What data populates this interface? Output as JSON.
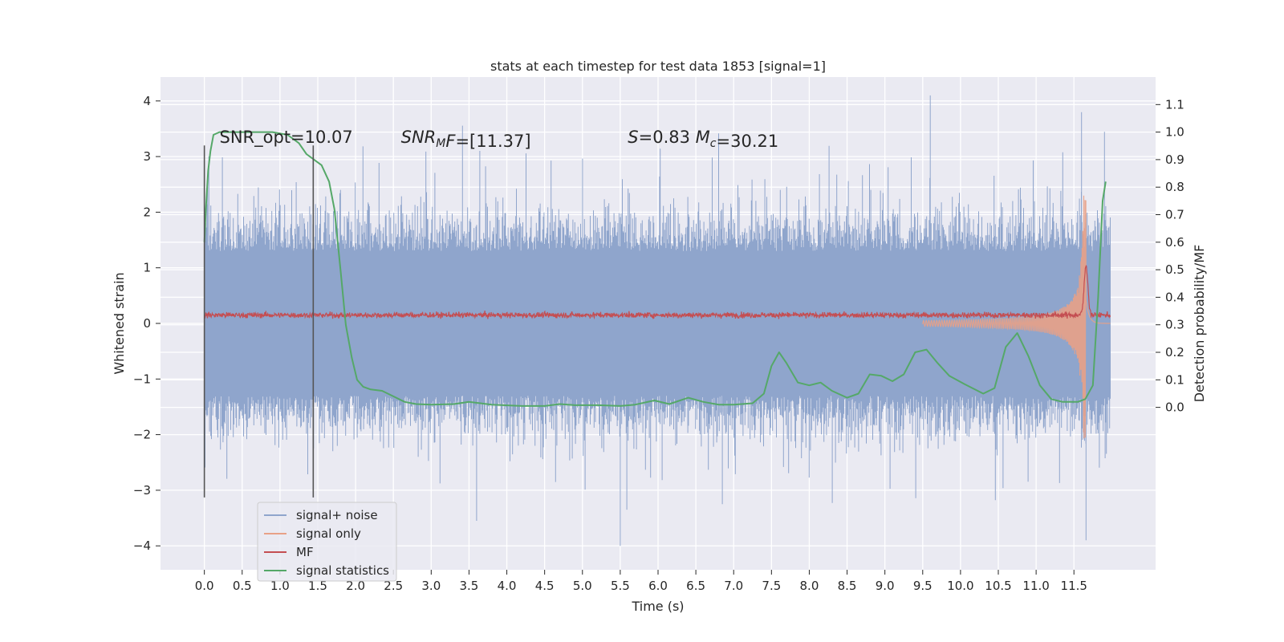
{
  "chart_data": {
    "type": "line",
    "title": "stats at each timestep for test data 1853 [signal=1]",
    "xlabel": "Time (s)",
    "ylabel": "Whitened strain",
    "ylabel_right": "Detection probability/MF",
    "xlim": [
      -0.58,
      12.58
    ],
    "ylim": [
      -4.43,
      4.43
    ],
    "ylim_right": [
      -0.59,
      1.2
    ],
    "x_ticks": [
      0.0,
      0.5,
      1.0,
      1.5,
      2.0,
      2.5,
      3.0,
      3.5,
      4.0,
      4.5,
      5.0,
      5.5,
      6.0,
      6.5,
      7.0,
      7.5,
      8.0,
      8.5,
      9.0,
      9.5,
      10.0,
      10.5,
      11.0,
      11.5
    ],
    "x_tick_labels": [
      "0.0",
      "0.5",
      "1.0",
      "1.5",
      "2.0",
      "2.5",
      "3.0",
      "3.5",
      "4.0",
      "4.5",
      "5.0",
      "5.5",
      "6.0",
      "6.5",
      "7.0",
      "7.5",
      "8.0",
      "8.5",
      "9.0",
      "9.5",
      "10.0",
      "10.5",
      "11.0",
      "11.5"
    ],
    "y_ticks": [
      -4,
      -3,
      -2,
      -1,
      0,
      1,
      2,
      3,
      4
    ],
    "y_tick_labels": [
      "−4",
      "−3",
      "−2",
      "−1",
      "0",
      "1",
      "2",
      "3",
      "4"
    ],
    "y_right_ticks": [
      0.0,
      0.1,
      0.2,
      0.3,
      0.4,
      0.5,
      0.6,
      0.7,
      0.8,
      0.9,
      1.0,
      1.1
    ],
    "y_right_tick_labels": [
      "0.0",
      "0.1",
      "0.2",
      "0.3",
      "0.4",
      "0.5",
      "0.6",
      "0.7",
      "0.8",
      "0.9",
      "1.0",
      "1.1"
    ],
    "grid": true,
    "legend_position": "lower-left",
    "annotations": [
      {
        "parts": [
          {
            "text": "SNR_opt=10.07",
            "italic": false
          }
        ],
        "x": 0.2,
        "y": 3.25
      },
      {
        "parts": [
          {
            "text": "SNR",
            "italic": true
          },
          {
            "text": "M",
            "italic": true,
            "sub": true
          },
          {
            "text": "F",
            "italic": true
          },
          {
            "text": "=[11.37]",
            "italic": false
          }
        ],
        "x": 2.6,
        "y": 3.25
      },
      {
        "parts": [
          {
            "text": "S",
            "italic": true
          },
          {
            "text": "=0.83   ",
            "italic": false
          },
          {
            "text": "M",
            "italic": true
          },
          {
            "text": "c",
            "italic": true,
            "sub": true
          },
          {
            "text": "=30.21",
            "italic": false
          }
        ],
        "x": 5.6,
        "y": 3.25
      }
    ],
    "vlines": [
      {
        "x": 0.0,
        "y_range": [
          -3.13,
          3.2
        ]
      },
      {
        "x": 1.44,
        "y_range": [
          -3.13,
          3.2
        ]
      }
    ],
    "series": [
      {
        "name": "signal+ noise",
        "color": "#8fa5cc",
        "axis": "left",
        "x_range": [
          0.0,
          11.98
        ],
        "envelope": {
          "core": 1.3,
          "typical_peak": 2.4,
          "max_peak": 4.1,
          "min_peak": -4.0
        }
      },
      {
        "name": "signal only",
        "color": "#e8a187",
        "axis": "left",
        "chirp": {
          "start_x": 9.5,
          "peak_x": 11.66,
          "peak_amplitude": 2.3,
          "end_x": 11.98
        }
      },
      {
        "name": "MF",
        "color": "#c44e52",
        "axis": "left",
        "baseline": 0.15,
        "noise": 0.07,
        "peak": {
          "x": 11.66,
          "y": 1.05
        }
      },
      {
        "name": "signal statistics",
        "color": "#55a868",
        "axis": "right",
        "x": [
          0.0,
          0.02,
          0.05,
          0.08,
          0.12,
          0.2,
          0.35,
          0.6,
          0.9,
          1.1,
          1.25,
          1.35,
          1.45,
          1.55,
          1.65,
          1.72,
          1.8,
          1.87,
          1.95,
          2.02,
          2.1,
          2.2,
          2.35,
          2.5,
          2.65,
          2.8,
          3.0,
          3.3,
          3.5,
          3.8,
          4.2,
          4.5,
          4.7,
          4.9,
          5.2,
          5.5,
          5.7,
          5.95,
          6.15,
          6.4,
          6.6,
          6.8,
          7.0,
          7.25,
          7.4,
          7.5,
          7.6,
          7.7,
          7.85,
          8.0,
          8.15,
          8.3,
          8.5,
          8.65,
          8.8,
          8.95,
          9.1,
          9.25,
          9.4,
          9.55,
          9.7,
          9.85,
          10.05,
          10.3,
          10.45,
          10.6,
          10.75,
          10.9,
          11.05,
          11.2,
          11.35,
          11.55,
          11.65,
          11.75,
          11.82,
          11.88,
          11.92
        ],
        "y": [
          0.6,
          0.72,
          0.86,
          0.93,
          0.99,
          1.0,
          1.0,
          1.0,
          1.0,
          0.99,
          0.96,
          0.92,
          0.9,
          0.88,
          0.82,
          0.72,
          0.5,
          0.3,
          0.18,
          0.1,
          0.075,
          0.065,
          0.06,
          0.04,
          0.02,
          0.012,
          0.01,
          0.012,
          0.02,
          0.01,
          0.005,
          0.005,
          0.012,
          0.008,
          0.008,
          0.005,
          0.01,
          0.025,
          0.012,
          0.035,
          0.02,
          0.01,
          0.01,
          0.015,
          0.05,
          0.15,
          0.2,
          0.16,
          0.09,
          0.08,
          0.09,
          0.06,
          0.035,
          0.05,
          0.12,
          0.115,
          0.095,
          0.12,
          0.2,
          0.21,
          0.16,
          0.115,
          0.085,
          0.05,
          0.07,
          0.22,
          0.27,
          0.185,
          0.08,
          0.03,
          0.02,
          0.02,
          0.03,
          0.08,
          0.4,
          0.75,
          0.82
        ]
      }
    ]
  }
}
